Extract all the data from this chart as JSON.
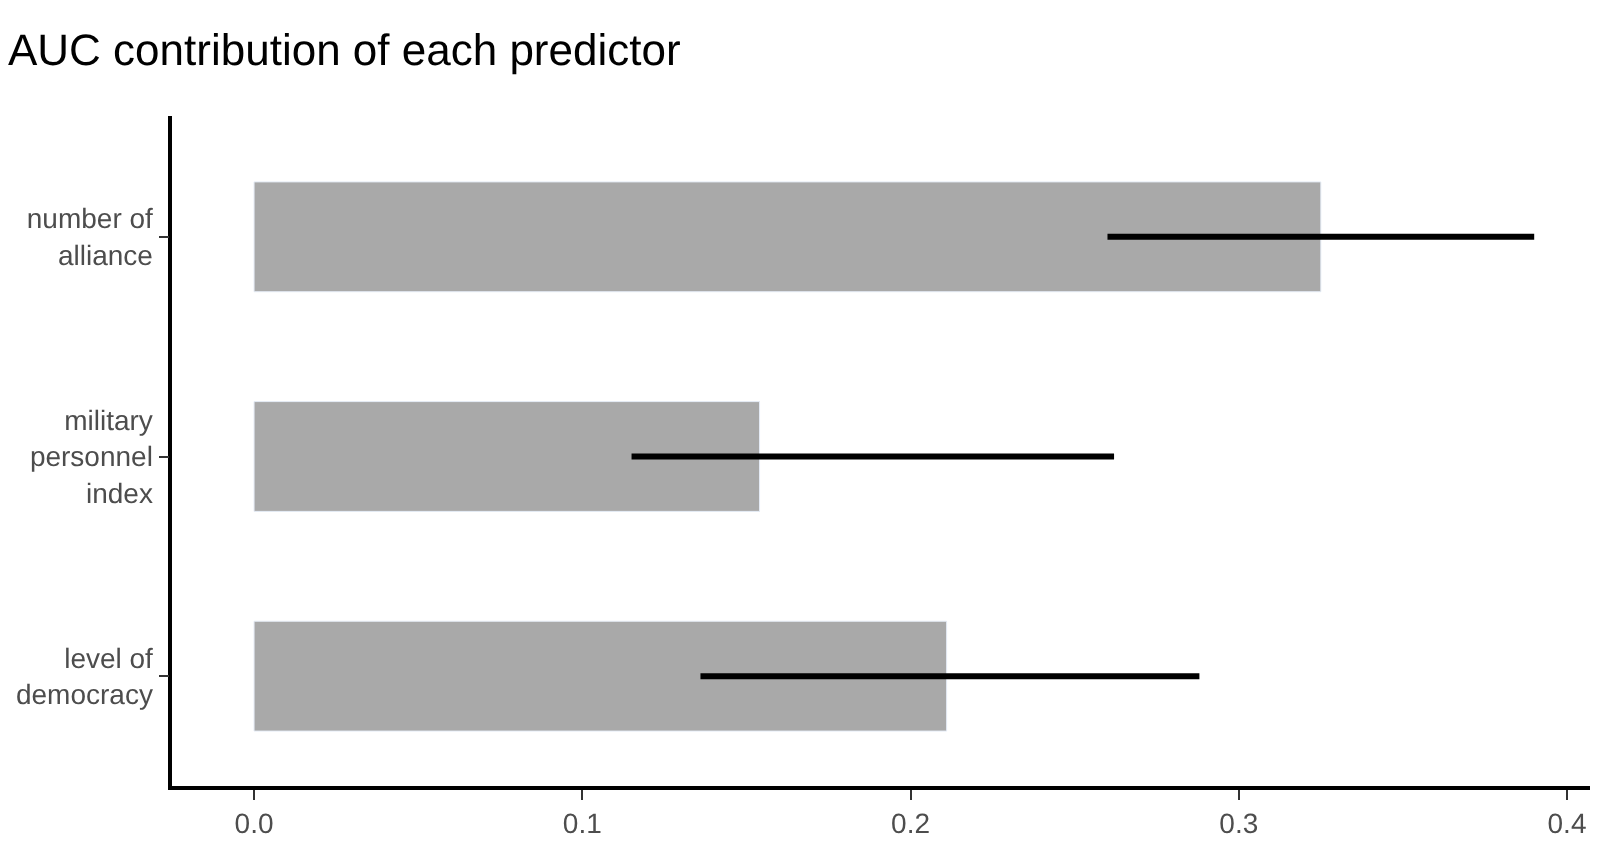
{
  "chart_data": {
    "type": "bar",
    "orientation": "horizontal",
    "title": "AUC contribution of each predictor",
    "categories": [
      "number of\nalliance",
      "military\npersonnel\nindex",
      "level of\ndemocracy"
    ],
    "values": [
      0.325,
      0.154,
      0.211
    ],
    "errors": [
      [
        0.26,
        0.39
      ],
      [
        0.115,
        0.262
      ],
      [
        0.136,
        0.288
      ]
    ],
    "color": "#a9a9a9",
    "xlim": [
      -0.025,
      0.407
    ],
    "xticks": [
      {
        "value": 0,
        "label": "0.0"
      },
      0.1,
      0.2,
      0.3,
      0.4
    ]
  }
}
